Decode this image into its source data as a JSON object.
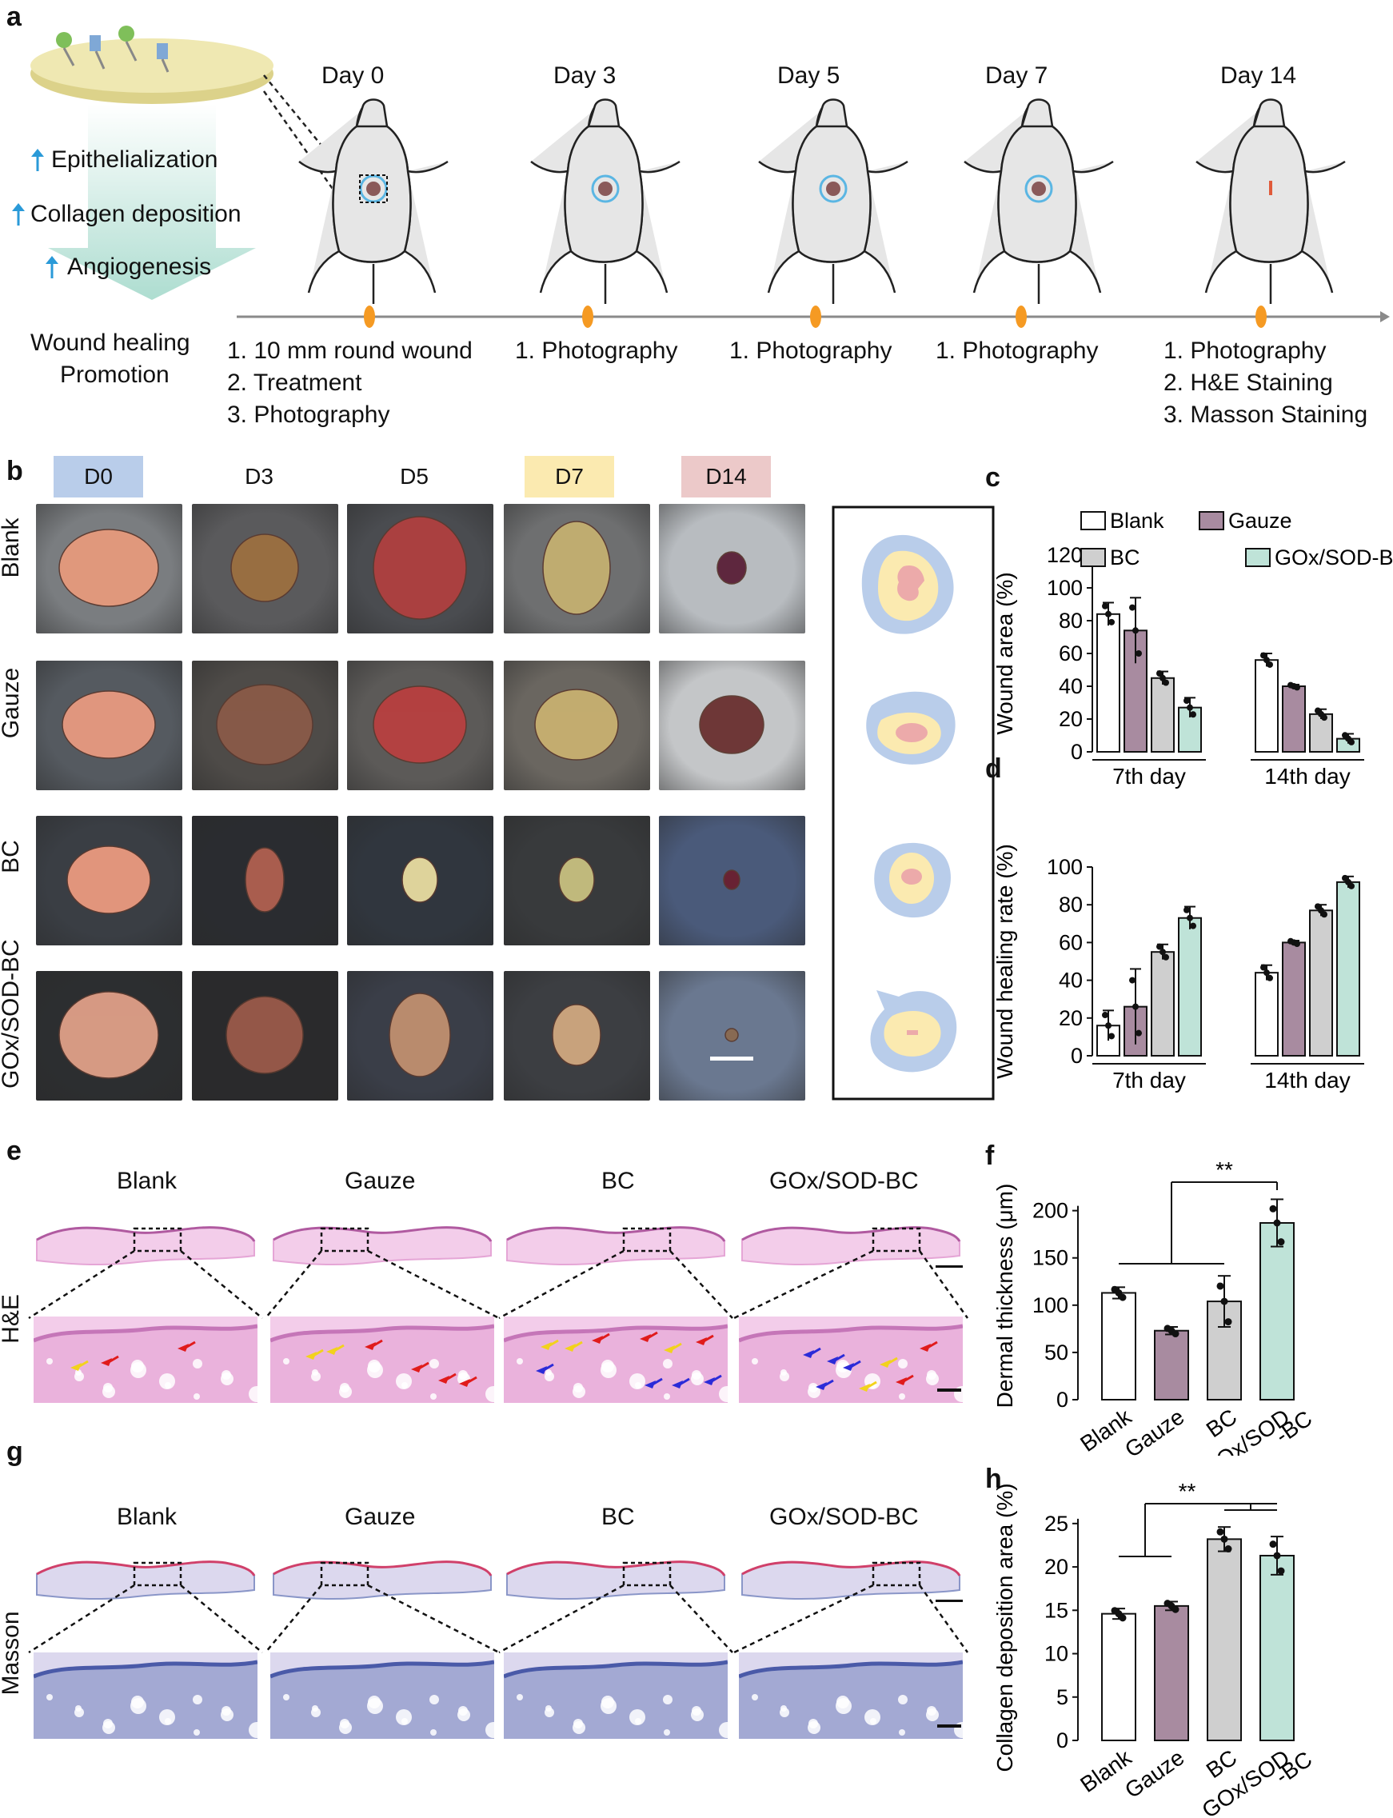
{
  "panel_labels": {
    "a": "a",
    "b": "b",
    "c": "c",
    "d": "d",
    "e": "e",
    "f": "f",
    "g": "g",
    "h": "h"
  },
  "panel_a": {
    "effects": [
      "Epithelialization",
      "Collagen deposition",
      "Angiogenesis"
    ],
    "outcome": [
      "Wound healing",
      "Promotion"
    ],
    "days": [
      "Day 0",
      "Day 3",
      "Day 5",
      "Day 7",
      "Day 14"
    ],
    "steps": [
      [
        "1. 10 mm round wound",
        "2. Treatment",
        "3. Photography"
      ],
      [
        "1. Photography"
      ],
      [
        "1. Photography"
      ],
      [
        "1. Photography"
      ],
      [
        "1. Photography",
        "2. H&E Staining",
        "3. Masson Staining"
      ]
    ]
  },
  "panel_b": {
    "days": [
      "D0",
      "D3",
      "D5",
      "D7",
      "D14"
    ],
    "day_colors": [
      "#b9cdea",
      "#ffffff",
      "#ffffff",
      "#fbeab0",
      "#ecc9c9"
    ],
    "groups": [
      "Blank",
      "Gauze",
      "BC",
      "GOx/SOD-BC"
    ]
  },
  "panel_e": {
    "groups": [
      "Blank",
      "Gauze",
      "BC",
      "GOx/SOD-BC"
    ],
    "row_label": "H&E"
  },
  "panel_g": {
    "groups": [
      "Blank",
      "Gauze",
      "BC",
      "GOx/SOD-BC"
    ],
    "row_label": "Masson"
  },
  "colors": {
    "blank": "#ffffff",
    "gauze": "#a88ba0",
    "bc": "#cfcfcf",
    "gox": "#bfe3d8",
    "arrow_red": "#e01b1b",
    "arrow_yellow": "#f2d21c",
    "arrow_blue": "#2b2bd8",
    "timeline_dot": "#f59a23"
  },
  "chart_data": [
    {
      "id": "c",
      "type": "bar",
      "ylabel": "Wound area (%)",
      "categories": [
        "7th day",
        "14th day"
      ],
      "ylim": [
        0,
        120
      ],
      "yticks": [
        0,
        20,
        40,
        60,
        80,
        100,
        120
      ],
      "series": [
        {
          "name": "Blank",
          "values": [
            84,
            56
          ],
          "errors": [
            7,
            4
          ]
        },
        {
          "name": "Gauze",
          "values": [
            74,
            40
          ],
          "errors": [
            20,
            1
          ]
        },
        {
          "name": "BC",
          "values": [
            45,
            23
          ],
          "errors": [
            4,
            3
          ]
        },
        {
          "name": "GOx/SOD-BC",
          "values": [
            27,
            8
          ],
          "errors": [
            6,
            3
          ]
        }
      ]
    },
    {
      "id": "d",
      "type": "bar",
      "ylabel": "Wound healing rate (%)",
      "categories": [
        "7th day",
        "14th day"
      ],
      "ylim": [
        0,
        100
      ],
      "yticks": [
        0,
        20,
        40,
        60,
        80,
        100
      ],
      "series": [
        {
          "name": "Blank",
          "values": [
            16,
            44
          ],
          "errors": [
            8,
            4
          ]
        },
        {
          "name": "Gauze",
          "values": [
            26,
            60
          ],
          "errors": [
            20,
            1
          ]
        },
        {
          "name": "BC",
          "values": [
            55,
            77
          ],
          "errors": [
            4,
            3
          ]
        },
        {
          "name": "GOx/SOD-BC",
          "values": [
            73,
            92
          ],
          "errors": [
            6,
            3
          ]
        }
      ]
    },
    {
      "id": "f",
      "type": "bar",
      "ylabel": "Dermal thickness (μm)",
      "categories": [
        "Blank",
        "Gauze",
        "BC",
        "GOx/SOD-BC"
      ],
      "tick_labels": [
        [
          "Blank"
        ],
        [
          "Gauze"
        ],
        [
          "BC"
        ],
        [
          "GOx/SOD",
          "-BC"
        ]
      ],
      "values": [
        113,
        73,
        104,
        187
      ],
      "errors": [
        6,
        4,
        27,
        25
      ],
      "ylim": [
        0,
        220
      ],
      "yticks": [
        0,
        50,
        100,
        150,
        200
      ],
      "annotation": "**"
    },
    {
      "id": "h",
      "type": "bar",
      "ylabel": "Collagen deposition area (%)",
      "categories": [
        "Blank",
        "Gauze",
        "BC",
        "GOx/SOD-BC"
      ],
      "tick_labels": [
        [
          "Blank"
        ],
        [
          "Gauze"
        ],
        [
          "BC"
        ],
        [
          "GOx/SOD",
          "-BC"
        ]
      ],
      "values": [
        14.6,
        15.5,
        23.2,
        21.3
      ],
      "errors": [
        0.6,
        0.5,
        1.4,
        2.2
      ],
      "ylim": [
        0,
        26
      ],
      "yticks": [
        0,
        5,
        10,
        15,
        20,
        25
      ],
      "annotation": "**"
    }
  ]
}
